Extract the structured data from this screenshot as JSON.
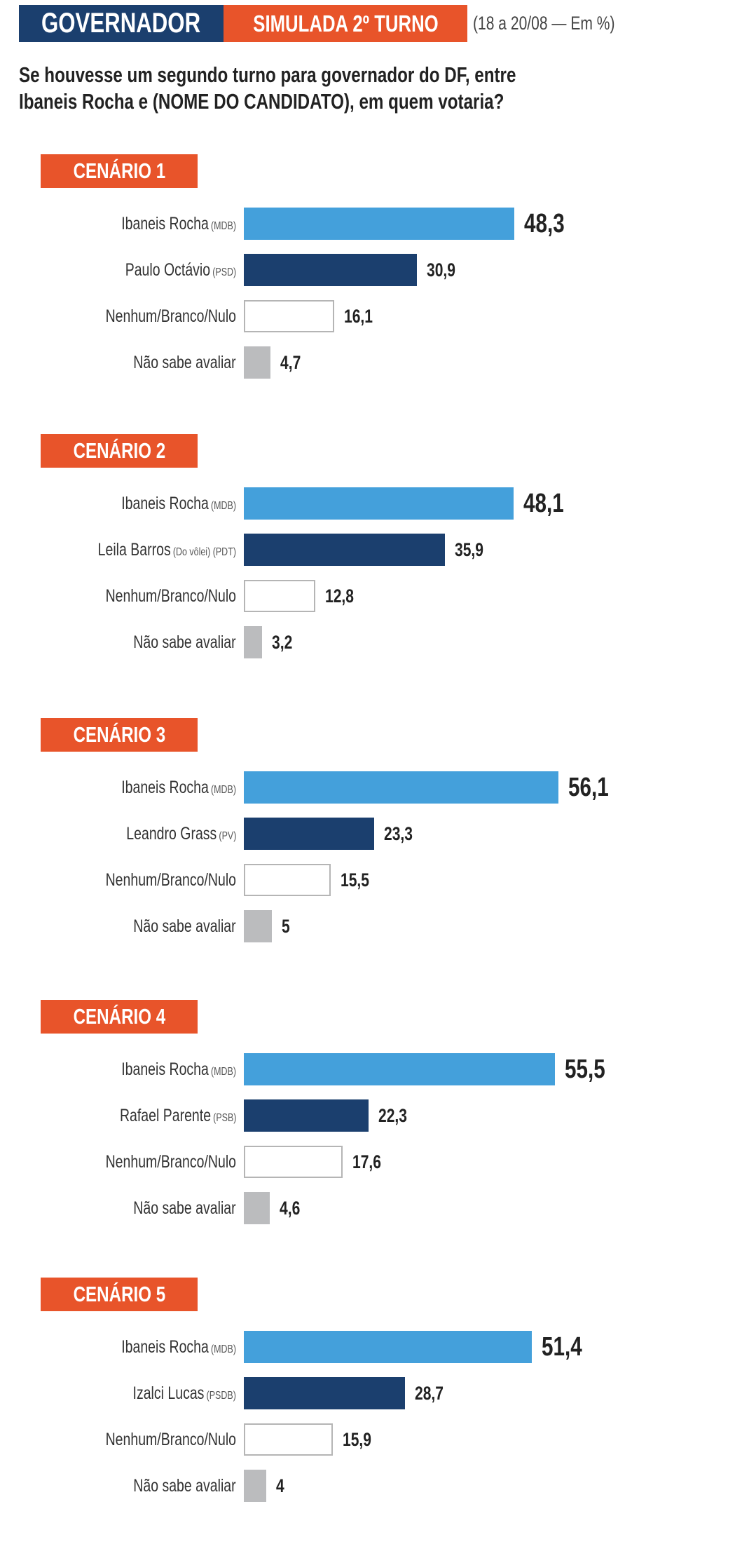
{
  "header": {
    "section": "GOVERNADOR",
    "subtitle": "SIMULADA 2º TURNO",
    "date_note": "(18 a 20/08 — Em %)"
  },
  "question": {
    "line1": "Se houvesse um segundo turno para governador do DF, entre",
    "line2": "Ibaneis Rocha e (NOME DO CANDIDATO), em quem votaria?"
  },
  "colors": {
    "ibaneis": "#44a0db",
    "opponent": "#1b3f6e",
    "nenhum": "#ffffff",
    "nao_sabe": "#bbbcbe",
    "accent": "#e8542a"
  },
  "chart_data": {
    "type": "bar",
    "orientation": "horizontal",
    "unit": "%",
    "scenarios": [
      {
        "title": "CENÁRIO 1",
        "rows": [
          {
            "label": "Ibaneis Rocha",
            "party": "(MDB)",
            "value": 48.3,
            "display": "48,3",
            "kind": "ibaneis"
          },
          {
            "label": "Paulo Octávio",
            "party": "(PSD)",
            "value": 30.9,
            "display": "30,9",
            "kind": "opponent"
          },
          {
            "label": "Nenhum/Branco/Nulo",
            "party": "",
            "value": 16.1,
            "display": "16,1",
            "kind": "nenhum"
          },
          {
            "label": "Não sabe avaliar",
            "party": "",
            "value": 4.7,
            "display": "4,7",
            "kind": "nao_sabe"
          }
        ]
      },
      {
        "title": "CENÁRIO 2",
        "rows": [
          {
            "label": "Ibaneis Rocha",
            "party": "(MDB)",
            "value": 48.1,
            "display": "48,1",
            "kind": "ibaneis"
          },
          {
            "label": "Leila Barros",
            "party": "(Do vôlei) (PDT)",
            "value": 35.9,
            "display": "35,9",
            "kind": "opponent"
          },
          {
            "label": "Nenhum/Branco/Nulo",
            "party": "",
            "value": 12.8,
            "display": "12,8",
            "kind": "nenhum"
          },
          {
            "label": "Não sabe avaliar",
            "party": "",
            "value": 3.2,
            "display": "3,2",
            "kind": "nao_sabe"
          }
        ]
      },
      {
        "title": "CENÁRIO 3",
        "rows": [
          {
            "label": "Ibaneis Rocha",
            "party": "(MDB)",
            "value": 56.1,
            "display": "56,1",
            "kind": "ibaneis"
          },
          {
            "label": "Leandro Grass",
            "party": "(PV)",
            "value": 23.3,
            "display": "23,3",
            "kind": "opponent"
          },
          {
            "label": "Nenhum/Branco/Nulo",
            "party": "",
            "value": 15.5,
            "display": "15,5",
            "kind": "nenhum"
          },
          {
            "label": "Não sabe avaliar",
            "party": "",
            "value": 5,
            "display": "5",
            "kind": "nao_sabe"
          }
        ]
      },
      {
        "title": "CENÁRIO 4",
        "rows": [
          {
            "label": "Ibaneis Rocha",
            "party": "(MDB)",
            "value": 55.5,
            "display": "55,5",
            "kind": "ibaneis"
          },
          {
            "label": "Rafael Parente",
            "party": "(PSB)",
            "value": 22.3,
            "display": "22,3",
            "kind": "opponent"
          },
          {
            "label": "Nenhum/Branco/Nulo",
            "party": "",
            "value": 17.6,
            "display": "17,6",
            "kind": "nenhum"
          },
          {
            "label": "Não sabe avaliar",
            "party": "",
            "value": 4.6,
            "display": "4,6",
            "kind": "nao_sabe"
          }
        ]
      },
      {
        "title": "CENÁRIO 5",
        "rows": [
          {
            "label": "Ibaneis Rocha",
            "party": "(MDB)",
            "value": 51.4,
            "display": "51,4",
            "kind": "ibaneis"
          },
          {
            "label": "Izalci Lucas",
            "party": "(PSDB)",
            "value": 28.7,
            "display": "28,7",
            "kind": "opponent"
          },
          {
            "label": "Nenhum/Branco/Nulo",
            "party": "",
            "value": 15.9,
            "display": "15,9",
            "kind": "nenhum"
          },
          {
            "label": "Não sabe avaliar",
            "party": "",
            "value": 4,
            "display": "4",
            "kind": "nao_sabe"
          }
        ]
      }
    ]
  }
}
